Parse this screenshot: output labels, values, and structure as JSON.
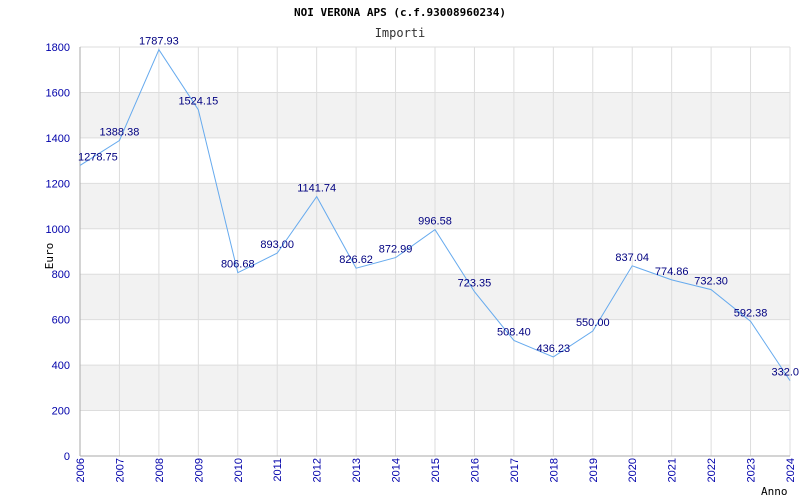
{
  "chart_data": {
    "type": "line",
    "title": "NOI VERONA APS (c.f.93008960234)",
    "subtitle": "Importi",
    "xlabel": "Anno",
    "ylabel": "Euro",
    "x": [
      "2006",
      "2007",
      "2008",
      "2009",
      "2010",
      "2011",
      "2012",
      "2013",
      "2014",
      "2015",
      "2016",
      "2017",
      "2018",
      "2019",
      "2020",
      "2021",
      "2022",
      "2023",
      "2024"
    ],
    "values": [
      1278.75,
      1388.38,
      1787.93,
      1524.15,
      806.68,
      893.0,
      1141.74,
      826.62,
      872.99,
      996.58,
      723.35,
      508.4,
      436.23,
      550.0,
      837.04,
      774.86,
      732.3,
      592.38,
      332.0
    ],
    "data_labels": [
      "1278.75",
      "1388.38",
      "1787.93",
      "1524.15",
      "806.68",
      "893.00",
      "1141.74",
      "826.62",
      "872.99",
      "996.58",
      "723.35",
      "508.40",
      "436.23",
      "550.00",
      "837.04",
      "774.86",
      "732.30",
      "592.38",
      "332.0"
    ],
    "y_ticks": [
      "0",
      "200",
      "400",
      "600",
      "800",
      "1000",
      "1200",
      "1400",
      "1600",
      "1800"
    ],
    "ylim": [
      0,
      1800
    ],
    "grid": true,
    "colors": {
      "line": "#66aaee",
      "band": "#f2f2f2",
      "grid": "#dddddd",
      "axis": "#aaaaaa",
      "ticks": "#0000aa",
      "labels": "#000080"
    }
  }
}
